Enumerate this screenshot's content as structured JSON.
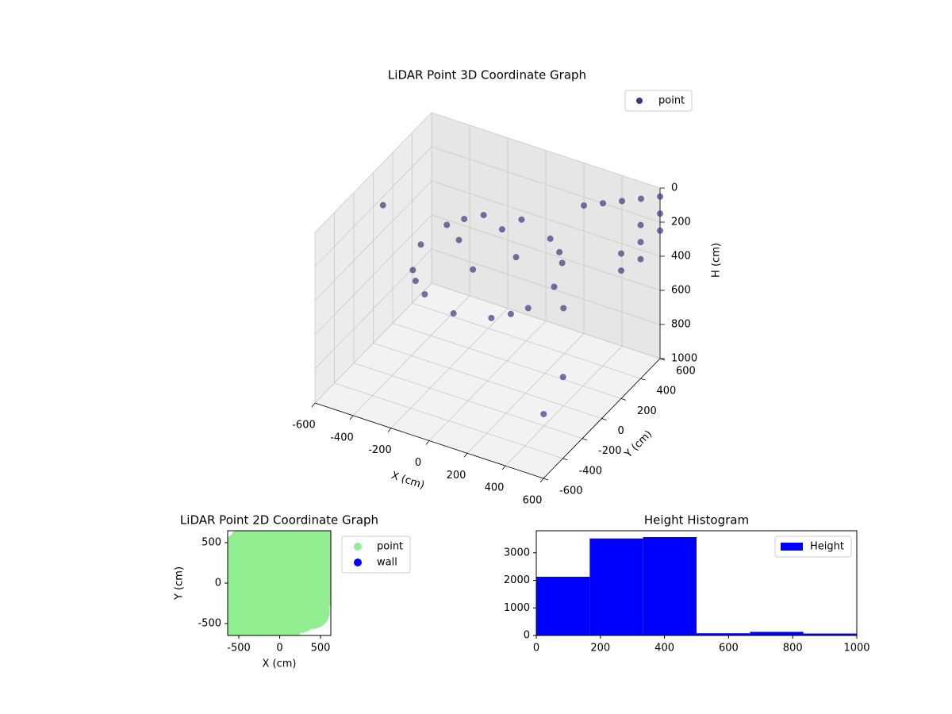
{
  "chart_data": [
    {
      "type": "scatter3d",
      "title": "LiDAR Point 3D Coordinate Graph",
      "xlabel": "X (cm)",
      "ylabel": "Y (cm)",
      "zlabel": "H (cm)",
      "xlim": [
        -600,
        600
      ],
      "ylim": [
        -600,
        600
      ],
      "zlim": [
        1000,
        0
      ],
      "xticks": [
        -600,
        -400,
        -200,
        0,
        200,
        400,
        600
      ],
      "yticks": [
        -600,
        -400,
        -200,
        0,
        200,
        400,
        600
      ],
      "zticks": [
        0,
        200,
        400,
        600,
        800,
        1000
      ],
      "legend": "upper right",
      "grid": true,
      "series": [
        {
          "name": "point",
          "color": "#46327e",
          "x": [
            350,
            303,
            175,
            0,
            -175,
            -303,
            -350,
            -303,
            -175,
            0,
            175,
            303,
            150,
            0,
            -150,
            0,
            250,
            -250,
            -250,
            250,
            600,
            600,
            600,
            600,
            600,
            600,
            600,
            600,
            500,
            400,
            300,
            200,
            -600,
            550,
            550,
            450
          ],
          "y": [
            0,
            175,
            303,
            350,
            303,
            175,
            0,
            -175,
            -303,
            -350,
            -303,
            -175,
            0,
            150,
            0,
            -150,
            250,
            250,
            -250,
            -250,
            600,
            600,
            600,
            400,
            400,
            400,
            200,
            200,
            600,
            600,
            600,
            600,
            100,
            -300,
            -500,
            -100
          ],
          "z": [
            320,
            300,
            280,
            260,
            270,
            300,
            330,
            360,
            380,
            400,
            390,
            360,
            220,
            200,
            230,
            260,
            300,
            290,
            360,
            370,
            50,
            150,
            250,
            100,
            200,
            300,
            150,
            250,
            100,
            150,
            200,
            250,
            250,
            600,
            700,
            350
          ]
        }
      ]
    },
    {
      "type": "scatter",
      "title": "LiDAR Point 2D Coordinate Graph",
      "xlabel": "X (cm)",
      "ylabel": "Y (cm)",
      "xlim": [
        -636,
        626
      ],
      "ylim": [
        -647,
        647
      ],
      "xticks": [
        -500,
        0,
        500
      ],
      "yticks": [
        -500,
        0,
        500
      ],
      "legend": "outside right",
      "series": [
        {
          "name": "point",
          "color": "#90ee90",
          "x": [
            -600,
            -550,
            -500,
            -450,
            -400,
            -350,
            -300,
            -250,
            -200,
            -150,
            -100,
            -50,
            0,
            50,
            100,
            150,
            200,
            250,
            300,
            350,
            400,
            450,
            500,
            550,
            580,
            -300,
            -200,
            0,
            200,
            300,
            -400,
            -100,
            100,
            400,
            -500,
            500,
            -300,
            0,
            300,
            -150,
            150,
            0
          ],
          "y": [
            50,
            -480,
            400,
            -300,
            500,
            200,
            600,
            -500,
            300,
            -600,
            0,
            450,
            600,
            -550,
            200,
            -200,
            550,
            -400,
            100,
            450,
            -350,
            300,
            520,
            100,
            0,
            -100,
            100,
            300,
            -100,
            -300,
            -100,
            -300,
            -300,
            100,
            -200,
            -100,
            300,
            -300,
            300,
            0,
            0,
            -580
          ]
        },
        {
          "name": "wall",
          "color": "#0000ff",
          "x": [],
          "y": []
        }
      ]
    },
    {
      "type": "histogram",
      "title": "Height Histogram",
      "bins": [
        0,
        166.7,
        333.3,
        500,
        666.7,
        833.3,
        1000
      ],
      "counts": [
        2130,
        3520,
        3570,
        80,
        130,
        70
      ],
      "series_name": "Height",
      "color": "#0000ff",
      "xlim": [
        0,
        1000
      ],
      "ylim": [
        0,
        3800
      ],
      "xticks": [
        0,
        200,
        400,
        600,
        800,
        1000
      ],
      "yticks": [
        0,
        1000,
        2000,
        3000
      ],
      "legend": "upper right"
    }
  ]
}
